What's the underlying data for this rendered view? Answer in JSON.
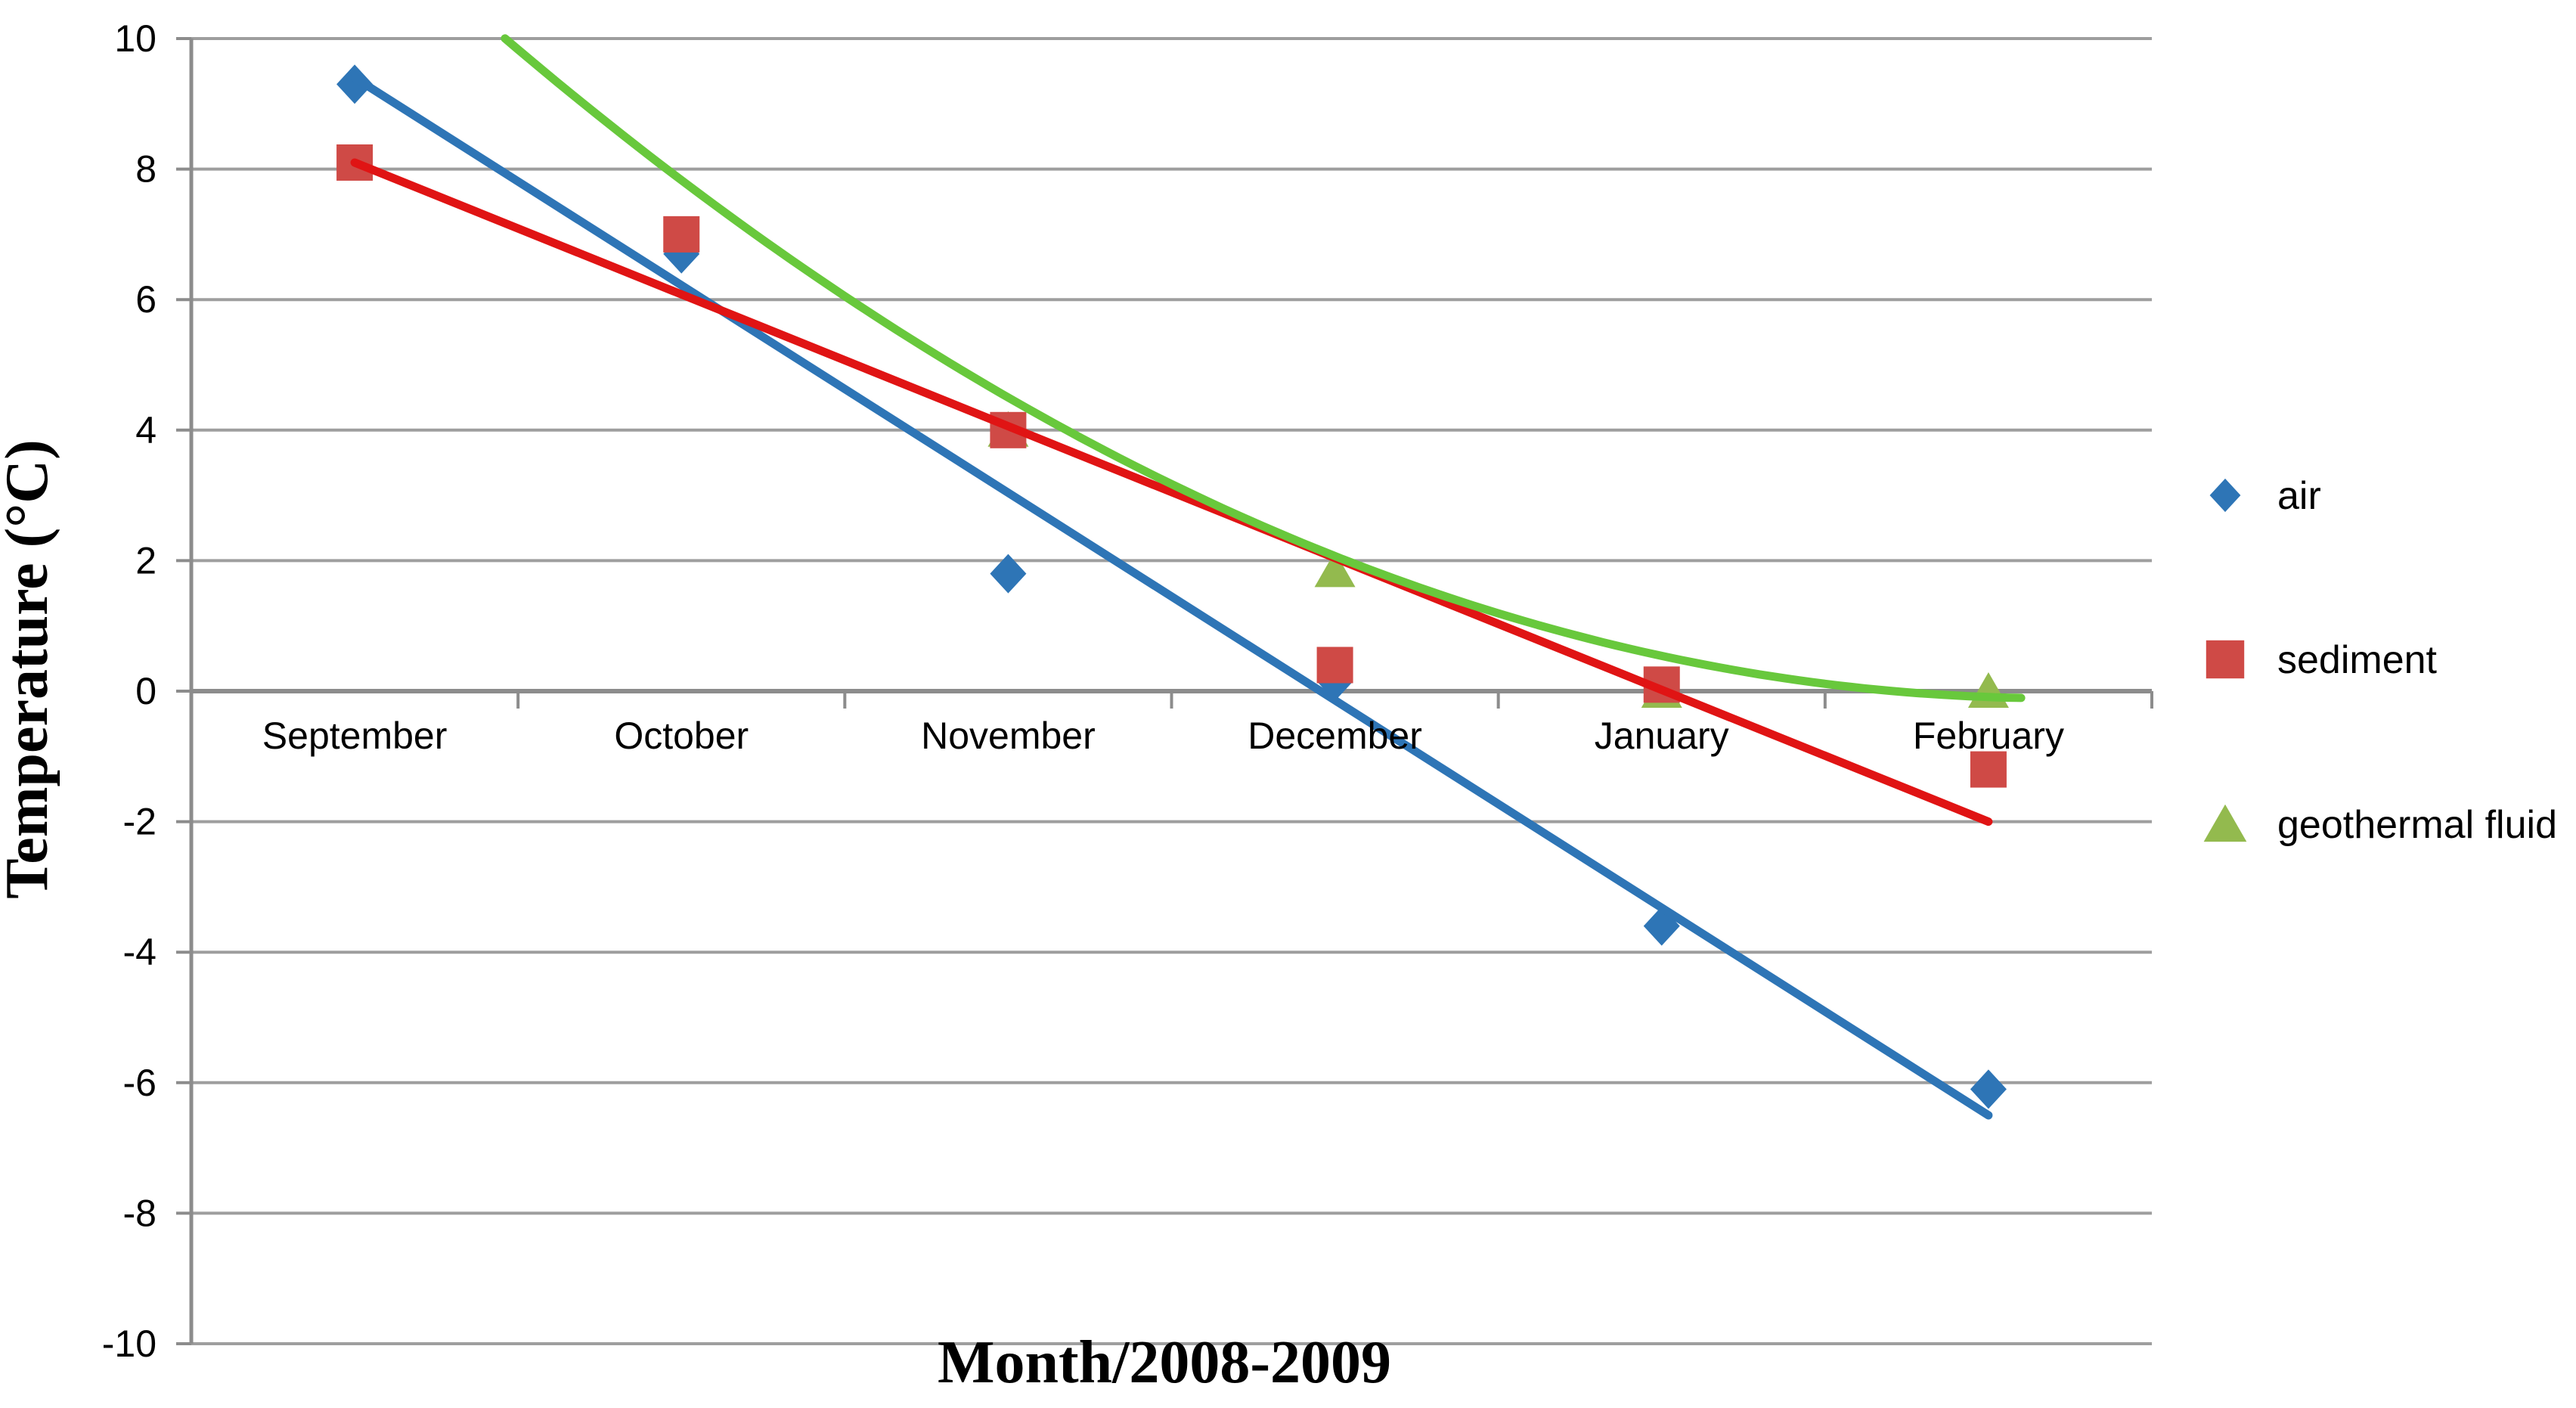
{
  "chart_data": {
    "type": "scatter",
    "title": "",
    "xlabel": "Month/2008-2009",
    "ylabel": "Temperature (°C)",
    "categories": [
      "September",
      "October",
      "November",
      "December",
      "January",
      "February"
    ],
    "y_ticks": [
      10,
      8,
      6,
      4,
      2,
      0,
      -2,
      -4,
      -6,
      -8,
      -10
    ],
    "ylim": [
      -10,
      10
    ],
    "grid": true,
    "legend_position": "right",
    "colors": {
      "gridline": "#9E9E9E",
      "axis": "#8C8C8C",
      "air": "#2E75B6",
      "air_trend": "#2E75B6",
      "sediment": "#CF4A46",
      "sediment_trend": "#E01414",
      "geothermal": "#93BA4E",
      "geothermal_trend": "#68C83C"
    },
    "series": [
      {
        "name": "air",
        "marker": "diamond",
        "color": "#2E75B6",
        "values": [
          9.3,
          6.7,
          1.8,
          0.15,
          -3.6,
          -6.1
        ],
        "trendline": {
          "type": "linear",
          "color": "#2E75B6",
          "start_value": 9.4,
          "end_value": -6.5
        }
      },
      {
        "name": "sediment",
        "marker": "square",
        "color": "#CF4A46",
        "values": [
          8.1,
          7.0,
          4.0,
          0.4,
          0.1,
          -1.2
        ],
        "trendline": {
          "type": "linear",
          "color": "#E01414",
          "start_value": 8.1,
          "end_value": -2.0
        }
      },
      {
        "name": "geothermal fluid",
        "marker": "triangle",
        "color": "#93BA4E",
        "values": [
          null,
          null,
          4.0,
          1.85,
          0.0,
          0.0
        ],
        "trendline": {
          "type": "polynomial2",
          "color": "#68C83C",
          "coeffs": [
            0.45,
            -4.68,
            12.06
          ],
          "u_start": 0.46,
          "u_end": 5.1
        }
      }
    ]
  }
}
